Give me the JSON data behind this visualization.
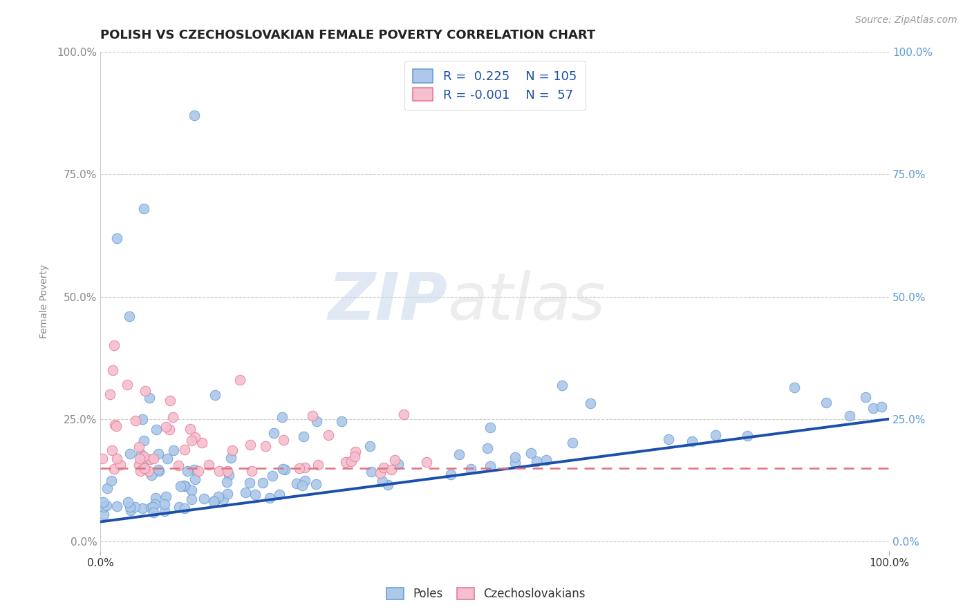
{
  "title": "POLISH VS CZECHOSLOVAKIAN FEMALE POVERTY CORRELATION CHART",
  "source_text": "Source: ZipAtlas.com",
  "ylabel": "Female Poverty",
  "xlim": [
    0.0,
    1.0
  ],
  "ylim": [
    -0.02,
    1.0
  ],
  "x_tick_labels": [
    "0.0%",
    "100.0%"
  ],
  "y_tick_labels": [
    "0.0%",
    "25.0%",
    "50.0%",
    "75.0%",
    "100.0%"
  ],
  "y_tick_positions": [
    0.0,
    0.25,
    0.5,
    0.75,
    1.0
  ],
  "poles_color": "#adc8e8",
  "poles_edge_color": "#6aa0d8",
  "czech_color": "#f5bfce",
  "czech_edge_color": "#e87a9a",
  "poles_line_color": "#1a4faa",
  "czech_line_color": "#e07080",
  "background_color": "#ffffff",
  "grid_color": "#cccccc",
  "R_poles": 0.225,
  "N_poles": 105,
  "R_czech": -0.001,
  "N_czech": 57,
  "legend_label_poles": "Poles",
  "legend_label_czech": "Czechoslovakians",
  "watermark_zip": "ZIP",
  "watermark_atlas": "atlas",
  "tick_color": "#5b9bd5",
  "left_tick_color": "#888888"
}
